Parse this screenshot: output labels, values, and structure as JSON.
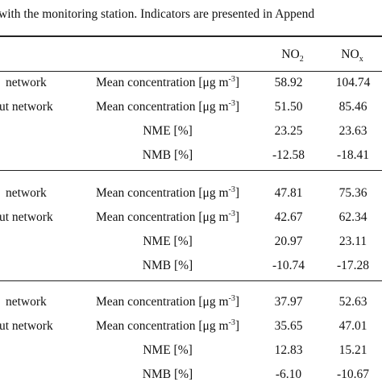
{
  "caption": "with the monitoring station. Indicators are presented in Append",
  "table": {
    "header": [
      {
        "base": "NO",
        "sub": "2"
      },
      {
        "base": "NO",
        "sub": "x"
      }
    ],
    "groups": [
      [
        {
          "label": "network",
          "indicator": {
            "text": "Mean concentration [μg m",
            "sup": "-3",
            "close": "]"
          },
          "no2": "58.92",
          "nox": "104.74"
        },
        {
          "label": "ut network",
          "indicator": {
            "text": "Mean concentration [μg m",
            "sup": "-3",
            "close": "]"
          },
          "no2": "51.50",
          "nox": "85.46"
        },
        {
          "indicator": "NME [%]",
          "no2": "23.25",
          "nox": "23.63"
        },
        {
          "indicator": "NMB [%]",
          "no2": "-12.58",
          "nox": "-18.41"
        }
      ],
      [
        {
          "label": "network",
          "indicator": {
            "text": "Mean concentration [μg m",
            "sup": "-3",
            "close": "]"
          },
          "no2": "47.81",
          "nox": "75.36"
        },
        {
          "label": "ut network",
          "indicator": {
            "text": "Mean concentration [μg m",
            "sup": "-3",
            "close": "]"
          },
          "no2": "42.67",
          "nox": "62.34"
        },
        {
          "indicator": "NME [%]",
          "no2": "20.97",
          "nox": "23.11"
        },
        {
          "indicator": "NMB [%]",
          "no2": "-10.74",
          "nox": "-17.28"
        }
      ],
      [
        {
          "label": "network",
          "indicator": {
            "text": "Mean concentration [μg m",
            "sup": "-3",
            "close": "]"
          },
          "no2": "37.97",
          "nox": "52.63"
        },
        {
          "label": "ut network",
          "indicator": {
            "text": "Mean concentration [μg m",
            "sup": "-3",
            "close": "]"
          },
          "no2": "35.65",
          "nox": "47.01"
        },
        {
          "indicator": "NME [%]",
          "no2": "12.83",
          "nox": "15.21"
        },
        {
          "indicator": "NMB [%]",
          "no2": "-6.10",
          "nox": "-10.67"
        }
      ]
    ]
  }
}
